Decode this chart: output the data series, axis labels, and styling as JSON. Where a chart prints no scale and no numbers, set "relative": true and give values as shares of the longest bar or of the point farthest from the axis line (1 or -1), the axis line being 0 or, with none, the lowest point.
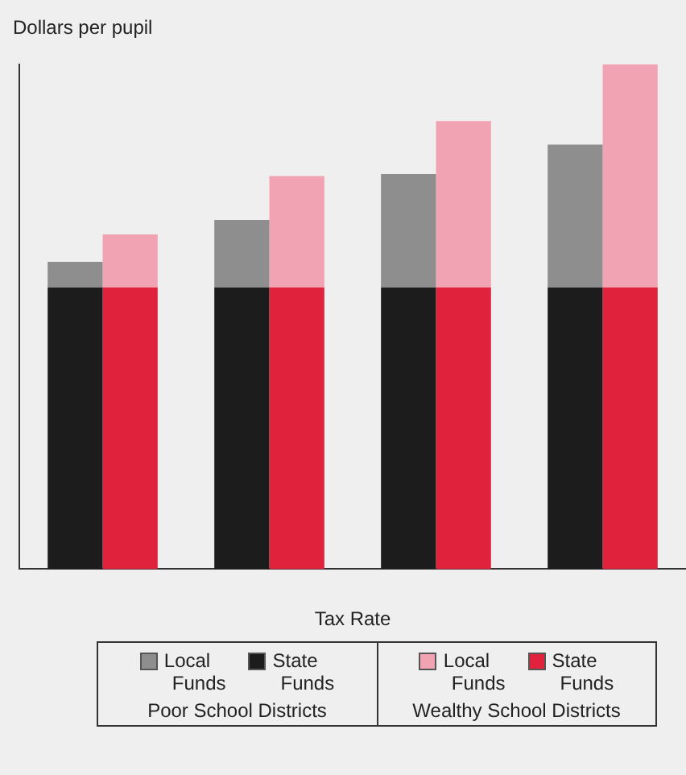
{
  "chart_data": {
    "type": "bar",
    "stacked": true,
    "relative": true,
    "ylabel": "Dollars per pupil",
    "xlabel": "Tax Rate",
    "categories": [
      null,
      null,
      null,
      null,
      null,
      null,
      null,
      null
    ],
    "legend": "bottom",
    "grid": false,
    "series": [
      {
        "name": "State Funds",
        "color": "#1c1c1c",
        "values": [
          0.558,
          null,
          0.558,
          null,
          0.558,
          null,
          0.558,
          null
        ]
      },
      {
        "name": "Local Funds",
        "color": "#8e8e8e",
        "values": [
          0.051,
          null,
          0.134,
          null,
          0.225,
          null,
          0.283,
          null
        ]
      },
      {
        "name": "State Funds",
        "color": "#e0223c",
        "values": [
          null,
          0.558,
          null,
          0.558,
          null,
          0.558,
          null,
          0.558
        ]
      },
      {
        "name": "Local Funds",
        "color": "#f2a3b3",
        "values": [
          null,
          0.105,
          null,
          0.221,
          null,
          0.33,
          null,
          0.442
        ]
      }
    ],
    "annotations": [
      "Poor School Districts",
      "Wealthy School Districts"
    ]
  }
}
